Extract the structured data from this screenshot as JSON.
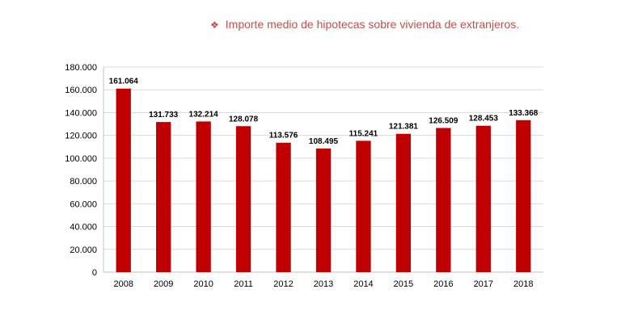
{
  "title_bullet": "❖",
  "chart_data": {
    "type": "bar",
    "title": "Importe medio de hipotecas sobre vivienda de extranjeros.",
    "categories": [
      "2008",
      "2009",
      "2010",
      "2011",
      "2012",
      "2013",
      "2014",
      "2015",
      "2016",
      "2017",
      "2018"
    ],
    "values": [
      161064,
      131733,
      132214,
      128078,
      113576,
      108495,
      115241,
      121381,
      126509,
      128453,
      133368
    ],
    "value_labels": [
      "161.064",
      "131.733",
      "132.214",
      "128.078",
      "113.576",
      "108.495",
      "115.241",
      "121.381",
      "126.509",
      "128.453",
      "133.368"
    ],
    "yticks": [
      0,
      20000,
      40000,
      60000,
      80000,
      100000,
      120000,
      140000,
      160000,
      180000
    ],
    "ytick_labels": [
      "0",
      "20.000",
      "40.000",
      "60.000",
      "80.000",
      "100.000",
      "120.000",
      "140.000",
      "160.000",
      "180.000"
    ],
    "ylim": [
      0,
      180000
    ],
    "grid": true,
    "bar_color": "#c00000",
    "title_color": "#c0504d"
  }
}
